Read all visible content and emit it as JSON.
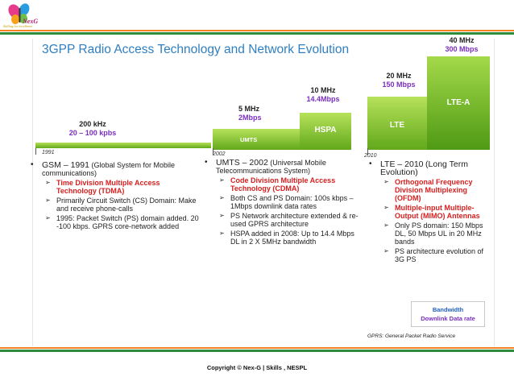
{
  "logo": {
    "text": "NexG",
    "tagline": "Skilling for excellence"
  },
  "title": "3GPP Radio Access Technology and Network Evolution",
  "bars": {
    "umts": "UMTS",
    "hspa": "HSPA",
    "lte": "LTE",
    "ltea": "LTE-A"
  },
  "freq": {
    "gsm": {
      "mhz": "200 kHz",
      "rate": "20 – 100 kpbs"
    },
    "umts": {
      "mhz": "5 MHz",
      "rate": "2Mbps"
    },
    "hspa": {
      "mhz": "10 MHz",
      "rate": "14.4Mbps"
    },
    "lte": {
      "mhz": "20 MHz",
      "rate": "150 Mbps"
    },
    "ltea": {
      "mhz": "40 MHz",
      "rate": "300 Mbps"
    }
  },
  "years": {
    "y1991": "1991",
    "y2002": "2002",
    "y2010": "2010"
  },
  "gsm": {
    "lead": "GSM – 1991",
    "rest": "(Global System for Mobile communications)",
    "items": [
      "Time Division Multiple Access Technology (TDMA)",
      "Primarily Circuit Switch (CS) Domain: Make and receive phone-calls",
      "1995: Packet Switch (PS) domain added. 20 -100 kbps. GPRS core-network added"
    ]
  },
  "umts": {
    "lead": "UMTS – 2002",
    "rest": "(Universal Mobile Telecommunications System)",
    "items": [
      "Code Division Multiple Access Technology (CDMA)",
      "Both CS and PS Domain: 100s kbps – 1Mbps downlink data rates",
      "PS Network architecture extended & re-used GPRS architecture",
      "HSPA added in 2008: Up to 14.4 Mbps DL in 2 X 5MHz bandwidth"
    ]
  },
  "lte": {
    "lead": "LTE – 2010",
    "rest": "(Long Term Evolution)",
    "items": [
      "Orthogonal Frequency Division Multiplexing (OFDM)",
      "Multiple-input Multiple-Output (MIMO) Antennas",
      "Only PS domain: 150 Mbps DL, 50 Mbps UL in 20 MHz bands",
      "PS architecture evolution of 3G PS"
    ]
  },
  "legend": {
    "bandwidth": "Bandwidth",
    "rate": "Downlink Data rate"
  },
  "note": "GPRS: General Packet Radio Service",
  "copyright": "Copyright © Nex-G | Skills , NESPL",
  "colors": {
    "title": "#2f7fc1",
    "rate": "#7a2fc0",
    "highlight": "#d62020",
    "bar": "#7cc02a",
    "stripe_orange": "#f58220",
    "stripe_green": "#2e8b3a"
  }
}
